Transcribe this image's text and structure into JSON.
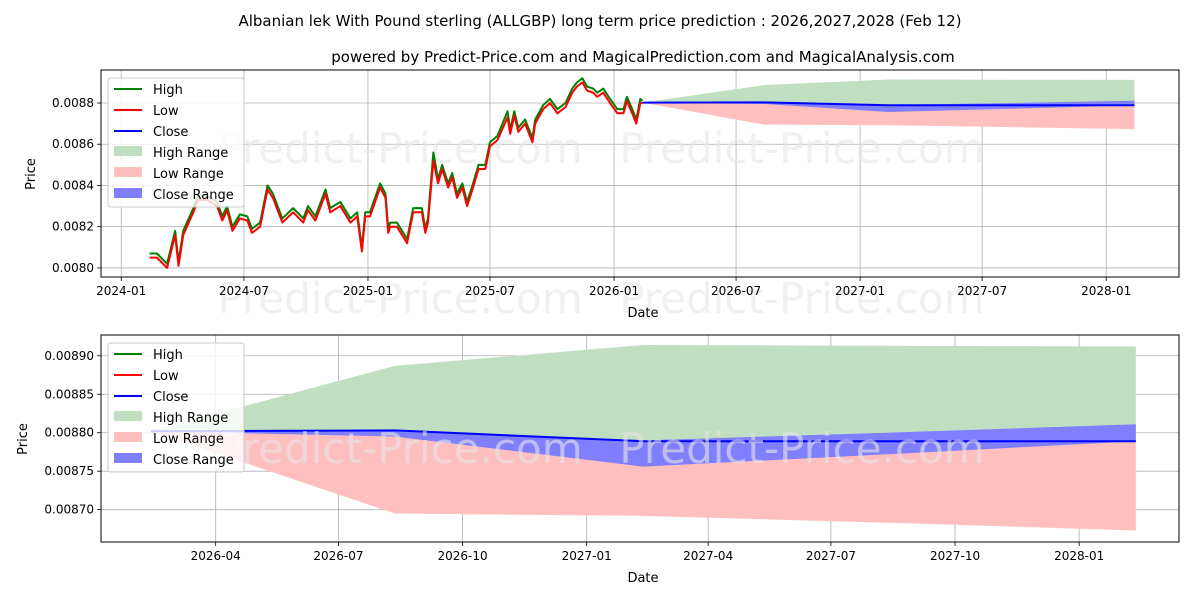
{
  "header": {
    "title": "Albanian lek With Pound sterling (ALLGBP) long term price prediction : 2026,2027,2028 (Feb 12)",
    "subtitle": "powered by Predict-Price.com and MagicalPrediction.com and MagicalAnalysis.com"
  },
  "watermark": "Predict-Price.com",
  "legend": {
    "high": "High",
    "low": "Low",
    "close": "Close",
    "high_range": "High Range",
    "low_range": "Low Range",
    "close_range": "Close Range"
  },
  "colors": {
    "high": "#008000",
    "low": "#ff0000",
    "close": "#0000ff",
    "high_range": "#c0dfc0",
    "low_range": "#ffbfbf",
    "close_range": "#7f7fff",
    "grid": "#b0b0b0"
  },
  "chart_data": [
    {
      "type": "line",
      "xlabel": "Date",
      "ylabel": "Price",
      "xlim": [
        "2023-12-02",
        "2028-04-18"
      ],
      "ylim": [
        0.007956,
        0.00896
      ],
      "grid": true,
      "legend_position": "top-left",
      "x_ticks": [
        "2024-01",
        "2024-07",
        "2025-01",
        "2025-07",
        "2026-01",
        "2026-07",
        "2027-01",
        "2027-07",
        "2028-01"
      ],
      "y_ticks": [
        0.008,
        0.0082,
        0.0084,
        0.0086,
        0.0088
      ],
      "y_tick_labels": [
        "0.0080",
        "0.0082",
        "0.0084",
        "0.0086",
        "0.0088"
      ],
      "show_history": true
    },
    {
      "type": "line",
      "xlabel": "Date",
      "ylabel": "Price",
      "xlim": [
        "2026-01-06",
        "2028-03-15"
      ],
      "ylim": [
        0.008658,
        0.008927
      ],
      "grid": true,
      "legend_position": "top-left",
      "x_ticks": [
        "2026-04",
        "2026-07",
        "2026-10",
        "2027-01",
        "2027-04",
        "2027-07",
        "2027-10",
        "2028-01"
      ],
      "y_ticks": [
        0.0087,
        0.00875,
        0.0088,
        0.00885,
        0.0089
      ],
      "y_tick_labels": [
        "0.00870",
        "0.00875",
        "0.00880",
        "0.00885",
        "0.00890"
      ],
      "show_history": false
    }
  ],
  "history": {
    "dates": [
      "2024-02-12",
      "2024-02-23",
      "2024-03-09",
      "2024-03-21",
      "2024-03-26",
      "2024-04-02",
      "2024-04-17",
      "2024-04-24",
      "2024-05-08",
      "2024-05-22",
      "2024-05-30",
      "2024-06-06",
      "2024-06-14",
      "2024-06-25",
      "2024-07-06",
      "2024-07-13",
      "2024-07-25",
      "2024-08-05",
      "2024-08-13",
      "2024-08-27",
      "2024-09-12",
      "2024-09-27",
      "2024-10-04",
      "2024-10-15",
      "2024-10-30",
      "2024-11-06",
      "2024-11-21",
      "2024-12-06",
      "2024-12-16",
      "2024-12-23",
      "2024-12-28",
      "2025-01-04",
      "2025-01-19",
      "2025-01-27",
      "2025-01-31",
      "2025-02-03",
      "2025-02-13",
      "2025-02-28",
      "2025-03-09",
      "2025-03-22",
      "2025-03-27",
      "2025-03-31",
      "2025-04-08",
      "2025-04-15",
      "2025-04-21",
      "2025-04-30",
      "2025-05-06",
      "2025-05-13",
      "2025-05-21",
      "2025-05-28",
      "2025-06-05",
      "2025-06-14",
      "2025-06-24",
      "2025-07-01",
      "2025-07-12",
      "2025-07-27",
      "2025-07-31",
      "2025-08-06",
      "2025-08-12",
      "2025-08-22",
      "2025-09-02",
      "2025-09-06",
      "2025-09-18",
      "2025-09-28",
      "2025-10-09",
      "2025-10-21",
      "2025-10-31",
      "2025-11-07",
      "2025-11-15",
      "2025-11-22",
      "2025-12-01",
      "2025-12-07",
      "2025-12-16",
      "2025-12-26",
      "2026-01-06",
      "2026-01-15",
      "2026-01-20",
      "2026-01-28",
      "2026-02-03",
      "2026-02-09",
      "2026-02-12"
    ],
    "low": [
      0.00805,
      0.00805,
      0.008,
      0.00816,
      0.00801,
      0.00816,
      0.00827,
      0.00833,
      0.00833,
      0.0083,
      0.00823,
      0.00828,
      0.00818,
      0.00824,
      0.00823,
      0.00817,
      0.0082,
      0.00838,
      0.00834,
      0.00822,
      0.00827,
      0.00822,
      0.00828,
      0.00823,
      0.00836,
      0.00827,
      0.0083,
      0.00822,
      0.00825,
      0.00808,
      0.00825,
      0.00825,
      0.00839,
      0.00834,
      0.00817,
      0.0082,
      0.0082,
      0.00812,
      0.00827,
      0.00827,
      0.00817,
      0.00822,
      0.00852,
      0.00841,
      0.00848,
      0.00839,
      0.00844,
      0.00834,
      0.00839,
      0.0083,
      0.00838,
      0.00848,
      0.00848,
      0.00859,
      0.00862,
      0.00873,
      0.00865,
      0.00874,
      0.00866,
      0.0087,
      0.00861,
      0.0087,
      0.00877,
      0.0088,
      0.00875,
      0.00878,
      0.00885,
      0.00888,
      0.0089,
      0.00886,
      0.00885,
      0.00883,
      0.00885,
      0.0088,
      0.00875,
      0.00875,
      0.00881,
      0.00875,
      0.0087,
      0.0088,
      0.0088
    ],
    "high": [
      0.00807,
      0.00807,
      0.00802,
      0.00818,
      0.00803,
      0.00818,
      0.00829,
      0.00835,
      0.00835,
      0.00832,
      0.00825,
      0.0083,
      0.0082,
      0.00826,
      0.00825,
      0.00819,
      0.00822,
      0.0084,
      0.00836,
      0.00824,
      0.00829,
      0.00824,
      0.0083,
      0.00825,
      0.00838,
      0.00829,
      0.00832,
      0.00824,
      0.00827,
      0.0081,
      0.00827,
      0.00827,
      0.00841,
      0.00836,
      0.00819,
      0.00822,
      0.00822,
      0.00814,
      0.00829,
      0.00829,
      0.00819,
      0.00824,
      0.00856,
      0.00843,
      0.0085,
      0.00841,
      0.00846,
      0.00836,
      0.00841,
      0.00832,
      0.0084,
      0.0085,
      0.0085,
      0.00861,
      0.00864,
      0.00876,
      0.00867,
      0.00876,
      0.00868,
      0.00872,
      0.00863,
      0.00872,
      0.00879,
      0.00882,
      0.00877,
      0.0088,
      0.00887,
      0.0089,
      0.00892,
      0.00888,
      0.00887,
      0.00885,
      0.00887,
      0.00882,
      0.00877,
      0.00877,
      0.00883,
      0.00877,
      0.00872,
      0.00882,
      0.00881
    ]
  },
  "forecast": {
    "dates": [
      "2026-02-12",
      "2026-08-12",
      "2027-02-12",
      "2027-08-12",
      "2028-02-12"
    ],
    "close": [
      0.008802,
      0.008803,
      0.008789,
      0.008789,
      0.008789
    ],
    "high_range_upper": [
      0.008802,
      0.008887,
      0.008914,
      0.008913,
      0.008912
    ],
    "low_range_lower": [
      0.008802,
      0.008695,
      0.008692,
      0.008683,
      0.008673
    ],
    "close_range_upper": [
      0.008802,
      0.008803,
      0.00879,
      0.0088,
      0.008811
    ],
    "close_range_lower": [
      0.008802,
      0.008795,
      0.008756,
      0.008772,
      0.008789
    ]
  }
}
